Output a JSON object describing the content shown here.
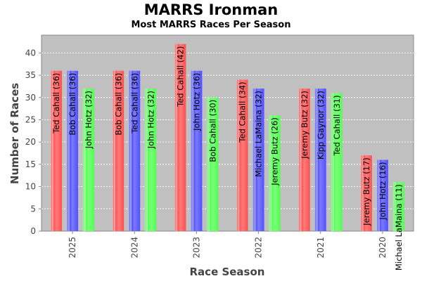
{
  "colors": {
    "plot_bg": "#c0c0c0",
    "grid": "#ffffff",
    "axis": "#888888",
    "series": [
      "#ff5a5a",
      "#5a5aff",
      "#5aff5a"
    ]
  },
  "chart_data": {
    "type": "bar",
    "title": "MARRS Ironman",
    "subtitle": "Most MARRS Races Per Season",
    "xlabel": "Race Season",
    "ylabel": "Number of Races",
    "ylim": [
      0,
      44
    ],
    "yticks": [
      0,
      5,
      10,
      15,
      20,
      25,
      30,
      35,
      40
    ],
    "grid": true,
    "categories": [
      "2025",
      "2024",
      "2023",
      "2022",
      "2021",
      "2020"
    ],
    "groups": [
      {
        "season": "2025",
        "bars": [
          {
            "label": "Ted Cahall (36)",
            "value": 36
          },
          {
            "label": "Bob Cahall (36)",
            "value": 36
          },
          {
            "label": "John Hotz (32)",
            "value": 32
          }
        ]
      },
      {
        "season": "2024",
        "bars": [
          {
            "label": "Bob Cahall (36)",
            "value": 36
          },
          {
            "label": "Ted Cahall (36)",
            "value": 36
          },
          {
            "label": "John Hotz (32)",
            "value": 32
          }
        ]
      },
      {
        "season": "2023",
        "bars": [
          {
            "label": "Ted Cahall (42)",
            "value": 42
          },
          {
            "label": "John Hotz (36)",
            "value": 36
          },
          {
            "label": "Bob Cahall (30)",
            "value": 30
          }
        ]
      },
      {
        "season": "2022",
        "bars": [
          {
            "label": "Ted Cahall (34)",
            "value": 34
          },
          {
            "label": "Michael LaMaina (32)",
            "value": 32
          },
          {
            "label": "Jeremy Butz (26)",
            "value": 26
          }
        ]
      },
      {
        "season": "2021",
        "bars": [
          {
            "label": "Jeremy Butz (32)",
            "value": 32
          },
          {
            "label": "Kipp Gaynor (32)",
            "value": 32
          },
          {
            "label": "Ted Cahall (31)",
            "value": 31
          }
        ]
      },
      {
        "season": "2020",
        "bars": [
          {
            "label": "Jeremy Butz (17)",
            "value": 17
          },
          {
            "label": "John Hotz (16)",
            "value": 16
          },
          {
            "label": "Michael LaMaina (11)",
            "value": 11
          }
        ]
      }
    ]
  }
}
